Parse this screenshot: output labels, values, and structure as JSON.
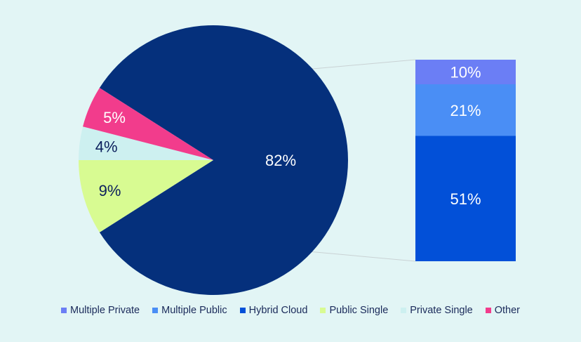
{
  "chart_data": {
    "type": "bar-of-pie",
    "title": "",
    "pie": {
      "slices": [
        {
          "label": "82%",
          "value": 82,
          "color": "#05307c",
          "text_color": "#ffffff"
        },
        {
          "label": "9%",
          "value": 9,
          "color": "#d8fb92",
          "text_color": "#0b1f5c"
        },
        {
          "label": "4%",
          "value": 4,
          "color": "#cdf0f0",
          "text_color": "#0b1f5c"
        },
        {
          "label": "5%",
          "value": 5,
          "color": "#f23c8c",
          "text_color": "#ffffff"
        }
      ]
    },
    "bar": {
      "segments": [
        {
          "label": "10%",
          "value": 10,
          "color": "#6b7ef5"
        },
        {
          "label": "21%",
          "value": 21,
          "color": "#4a8ef5"
        },
        {
          "label": "51%",
          "value": 51,
          "color": "#0250d8"
        }
      ]
    },
    "legend": [
      {
        "label": "Multiple Private",
        "color": "#6b7ef5"
      },
      {
        "label": "Multiple Public",
        "color": "#4a8ef5"
      },
      {
        "label": "Hybrid Cloud",
        "color": "#0250d8"
      },
      {
        "label": "Public Single",
        "color": "#d8fb92"
      },
      {
        "label": "Private Single",
        "color": "#cdf0f0"
      },
      {
        "label": "Other",
        "color": "#f23c8c"
      }
    ],
    "legend_position": "bottom"
  }
}
